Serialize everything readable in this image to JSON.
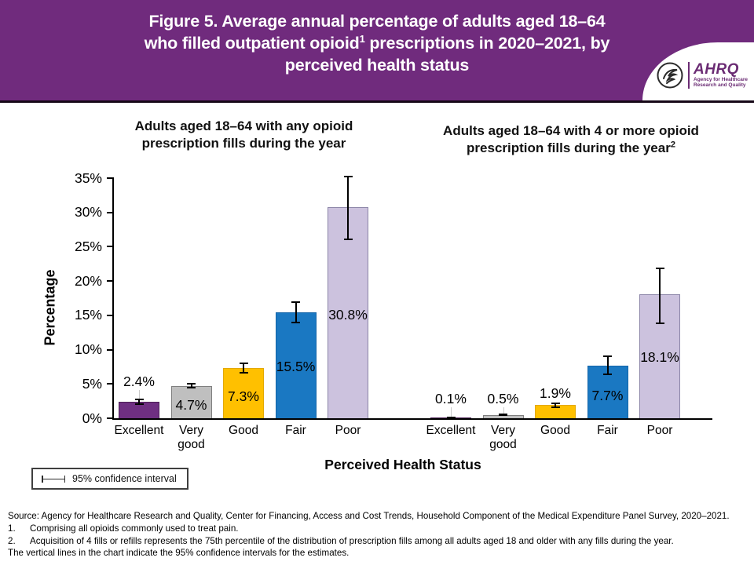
{
  "header": {
    "title_line1": "Figure 5. Average annual percentage of adults aged 18–64",
    "title_line2_pre": "who filled outpatient opioid",
    "title_line2_sup": "1",
    "title_line2_post": " prescriptions in 2020–2021, by",
    "title_line3": "perceived health status",
    "banner_color": "#702B7D",
    "logo": {
      "acronym": "AHRQ",
      "tagline_line1": "Agency for Healthcare",
      "tagline_line2": "Research and Quality"
    }
  },
  "chart_data": {
    "type": "bar",
    "ylabel": "Percentage",
    "xlabel": "Perceived Health Status",
    "ylim": [
      0,
      35
    ],
    "grid": false,
    "ytick_values": [
      0,
      5,
      10,
      15,
      20,
      25,
      30,
      35
    ],
    "ytick_labels": [
      "0%",
      "5%",
      "10%",
      "15%",
      "20%",
      "25%",
      "30%",
      "35%"
    ],
    "categories": [
      "Excellent",
      "Very good",
      "Good",
      "Fair",
      "Poor"
    ],
    "categories_display": [
      "Excellent",
      "Very\ngood",
      "Good",
      "Fair",
      "Poor"
    ],
    "bar_fill_colors": [
      "#6F2F82",
      "#BFBFBF",
      "#FFC000",
      "#1A78C2",
      "#CCC2DE"
    ],
    "bar_border_colors": [
      "#4D2057",
      "#7F7F7F",
      "#E3A800",
      "#1565A8",
      "#8C85A8"
    ],
    "panels": [
      {
        "title_text": "Adults aged 18–64 with any opioid prescription fills during the year",
        "title_sup": "",
        "values": [
          2.4,
          4.7,
          7.3,
          15.5,
          30.8
        ],
        "labels": [
          "2.4%",
          "4.7%",
          "7.3%",
          "15.5%",
          "30.8%"
        ],
        "ci_low": [
          1.9,
          4.3,
          6.5,
          13.8,
          26.0
        ],
        "ci_high": [
          2.9,
          5.1,
          8.1,
          17.0,
          35.3
        ],
        "label_y_pct": [
          5.3,
          1.8,
          3.1,
          7.4,
          15.0
        ],
        "leader": [
          true,
          false,
          false,
          false,
          false
        ]
      },
      {
        "title_text": "Adults aged 18–64 with 4 or more opioid prescription fills during the year",
        "title_sup": "2",
        "values": [
          0.1,
          0.5,
          1.9,
          7.7,
          18.1
        ],
        "labels": [
          "0.1%",
          "0.5%",
          "1.9%",
          "7.7%",
          "18.1%"
        ],
        "ci_low": [
          0.0,
          0.3,
          1.5,
          6.3,
          13.7
        ],
        "ci_high": [
          0.25,
          0.7,
          2.3,
          9.1,
          22.0
        ],
        "label_y_pct": [
          2.8,
          2.8,
          3.5,
          3.2,
          8.8
        ],
        "leader": [
          true,
          true,
          false,
          false,
          false
        ]
      }
    ],
    "legend": {
      "label": "95% confidence interval"
    }
  },
  "footnotes": {
    "source": "Source: Agency for Healthcare Research and Quality, Center for Financing, Access and Cost Trends, Household Component of the Medical Expenditure Panel Survey, 2020–2021.",
    "items": [
      {
        "marker": "1.",
        "text": "Comprising all opioids commonly used to treat pain."
      },
      {
        "marker": "2.",
        "text": "Acquisition of 4 fills or refills represents the 75th percentile of the distribution of prescription fills among all adults aged 18 and older with any fills during the year."
      }
    ],
    "note": "The vertical lines in the chart indicate the 95% confidence intervals for the estimates."
  }
}
